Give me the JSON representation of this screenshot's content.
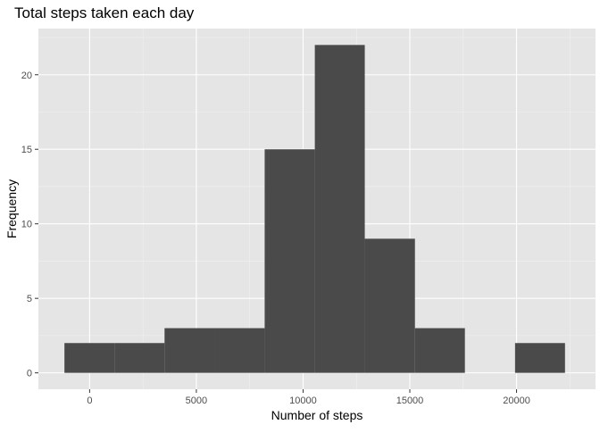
{
  "chart_data": {
    "type": "bar",
    "subtype": "histogram",
    "title": "Total steps taken each day",
    "xlabel": "Number of steps",
    "ylabel": "Frequency",
    "xlim": [
      -2400,
      23700
    ],
    "ylim": [
      -1.1,
      23.1
    ],
    "x_ticks": [
      0,
      5000,
      10000,
      15000,
      20000
    ],
    "x_tick_labels": [
      "0",
      "5000",
      "10000",
      "15000",
      "20000"
    ],
    "y_ticks": [
      0,
      5,
      10,
      15,
      20
    ],
    "y_tick_labels": [
      "0",
      "5",
      "10",
      "15",
      "20"
    ],
    "bins": [
      {
        "x0": -1180,
        "x1": 1170,
        "count": 2
      },
      {
        "x0": 1170,
        "x1": 3510,
        "count": 2
      },
      {
        "x0": 3510,
        "x1": 5860,
        "count": 3
      },
      {
        "x0": 5860,
        "x1": 8200,
        "count": 3
      },
      {
        "x0": 8200,
        "x1": 10550,
        "count": 15
      },
      {
        "x0": 10550,
        "x1": 12890,
        "count": 22
      },
      {
        "x0": 12890,
        "x1": 15240,
        "count": 9
      },
      {
        "x0": 15240,
        "x1": 17580,
        "count": 3
      },
      {
        "x0": 17580,
        "x1": 19930,
        "count": 0
      },
      {
        "x0": 19930,
        "x1": 22270,
        "count": 2
      }
    ],
    "grid": true,
    "legend": "none",
    "colors": {
      "panel_background": "#e5e5e5",
      "bar_fill": "#4a4a4a",
      "gridline": "#ffffff"
    }
  }
}
